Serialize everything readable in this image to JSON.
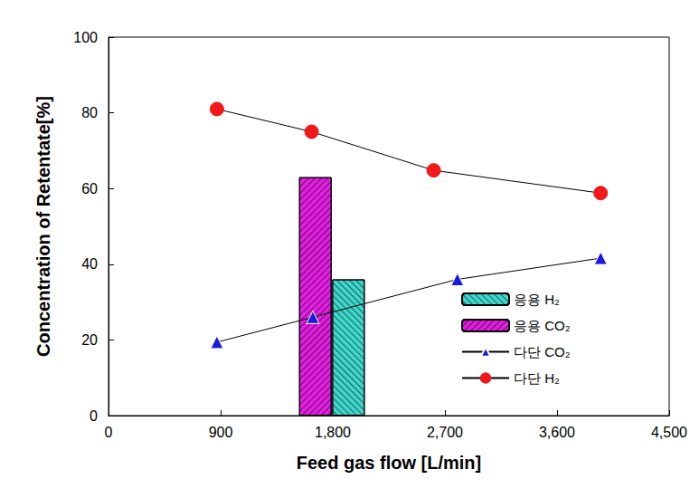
{
  "chart_data": {
    "type": "mixed",
    "xlabel": "Feed gas flow [L/min]",
    "ylabel": "Concentration of Retentate[%]",
    "xlim": [
      0,
      4500
    ],
    "xticks": [
      0,
      900,
      1800,
      2700,
      3600,
      4500
    ],
    "ylim": [
      0,
      100
    ],
    "yticks": [
      0,
      20,
      40,
      60,
      80,
      100
    ],
    "grid": false,
    "legend": "lower right",
    "series": [
      {
        "name": "응용 H₂",
        "type": "bar",
        "color": "#3fd6cc",
        "x": [
          1926
        ],
        "values": [
          36
        ]
      },
      {
        "name": "응용 CO₂",
        "type": "bar",
        "color": "#e21ee0",
        "x": [
          1660
        ],
        "values": [
          63
        ]
      },
      {
        "name": "다단 CO₂",
        "type": "line",
        "color": "#1a1adf",
        "marker": "triangle",
        "line_style": "solid",
        "x": [
          870,
          1640,
          2800,
          3950
        ],
        "values": [
          19.4,
          26,
          36,
          41.6
        ]
      },
      {
        "name": "다단 H₂",
        "type": "line",
        "color": "#f01818",
        "marker": "circle",
        "line_style": "solid",
        "x": [
          870,
          1630,
          2610,
          3950
        ],
        "values": [
          81,
          75,
          64.8,
          58.8
        ]
      }
    ]
  }
}
